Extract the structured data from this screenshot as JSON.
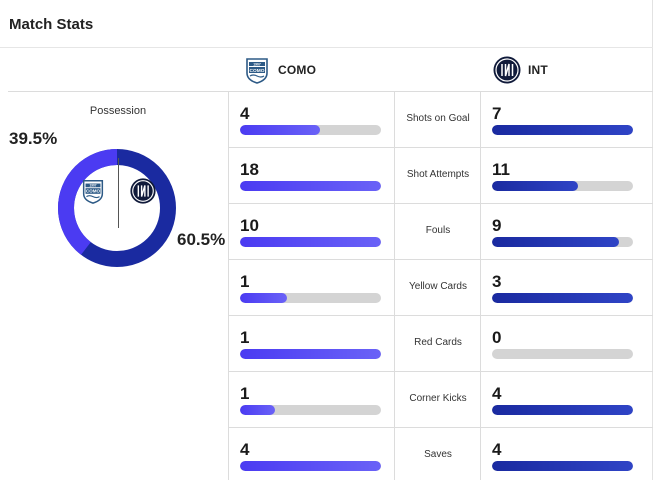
{
  "header": {
    "title": "Match Stats"
  },
  "teams": {
    "home": {
      "name": "COMO",
      "crest_lines": [
        "1907",
        "COMO"
      ],
      "color": "#4b3bf2"
    },
    "away": {
      "name": "INT",
      "color": "#1a2aa0"
    }
  },
  "possession": {
    "title": "Possession",
    "home_text": "39.5%",
    "away_text": "60.5%",
    "home_value": 39.5,
    "away_value": 60.5
  },
  "stats": [
    {
      "label": "Shots on Goal",
      "home": "4",
      "away": "7",
      "home_share": 0.57,
      "away_share": 1.0
    },
    {
      "label": "Shot Attempts",
      "home": "18",
      "away": "11",
      "home_share": 1.0,
      "away_share": 0.61
    },
    {
      "label": "Fouls",
      "home": "10",
      "away": "9",
      "home_share": 1.0,
      "away_share": 0.9
    },
    {
      "label": "Yellow Cards",
      "home": "1",
      "away": "3",
      "home_share": 0.33,
      "away_share": 1.0
    },
    {
      "label": "Red Cards",
      "home": "1",
      "away": "0",
      "home_share": 1.0,
      "away_share": 0.0
    },
    {
      "label": "Corner Kicks",
      "home": "1",
      "away": "4",
      "home_share": 0.25,
      "away_share": 1.0
    },
    {
      "label": "Saves",
      "home": "4",
      "away": "4",
      "home_share": 1.0,
      "away_share": 1.0
    }
  ]
}
